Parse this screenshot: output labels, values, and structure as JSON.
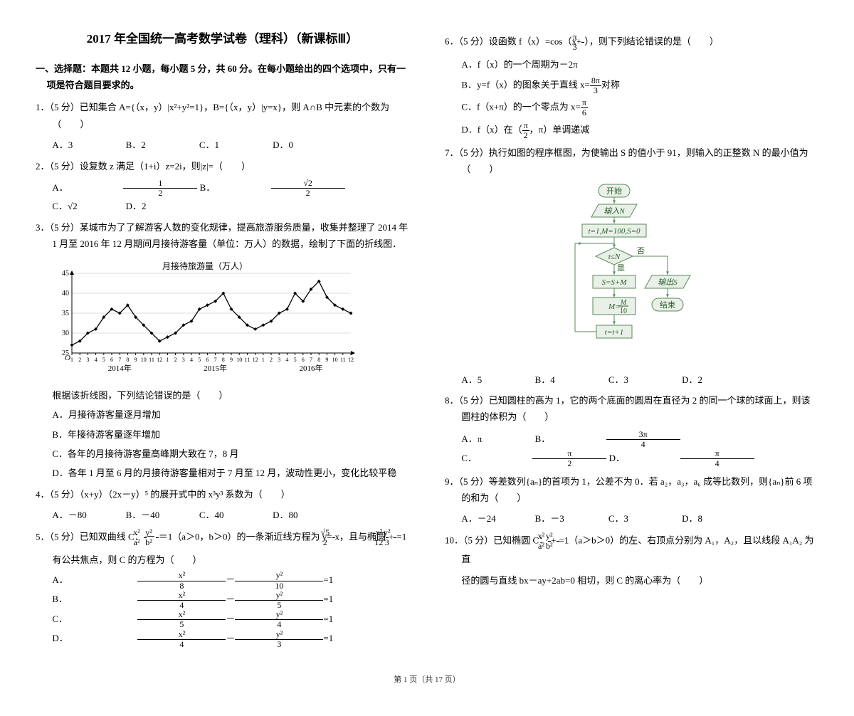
{
  "title": "2017 年全国统一高考数学试卷（理科）（新课标Ⅲ）",
  "section1": "一、选择题：本题共 12 小题，每小题 5 分，共 60 分。在每小题给出的四个选项中，只有一项是符合题目要求的。",
  "q1": {
    "stem": "1．（5 分）已知集合 A={（x，y）|x²+y²=1}，B={（x，y）|y=x}，则 A∩B 中元素的个数为（　　）",
    "a": "A．3",
    "b": "B．2",
    "c": "C．1",
    "d": "D．0"
  },
  "q2": {
    "stem": "2．（5 分）设复数 z 满足（1+i）z=2i，则|z|=（　　）",
    "a": "A．",
    "b": "B．",
    "c": "C．√2",
    "d": "D．2"
  },
  "q3": {
    "stem": "3．（5 分）某城市为了了解游客人数的变化规律，提高旅游服务质量，收集并整理了 2014 年 1 月至 2016 年 12 月期间月接待游客量（单位：万人）的数据，绘制了下面的折线图．",
    "chart_title": "月接待旅游量（万人）",
    "chart": {
      "y_ticks": [
        45,
        40,
        35,
        30,
        25
      ],
      "x_years": [
        "2014年",
        "2015年",
        "2016年"
      ],
      "months_label": [
        1,
        2,
        3,
        4,
        5,
        6,
        7,
        8,
        9,
        10,
        11,
        12,
        1,
        2,
        3,
        4,
        5,
        6,
        7,
        8,
        9,
        10,
        11,
        12,
        1,
        2,
        3,
        4,
        5,
        6,
        7,
        8,
        9,
        10,
        11,
        12
      ],
      "values": [
        27,
        28,
        30,
        31,
        34,
        36,
        35,
        37,
        34,
        32,
        30,
        28,
        29,
        30,
        32,
        33,
        36,
        37,
        38,
        40,
        36,
        34,
        32,
        31,
        32,
        33,
        35,
        36,
        40,
        38,
        41,
        43,
        39,
        37,
        36,
        35
      ],
      "bg": "#ffffff",
      "grid": "#bbbbbb",
      "line": "#000000",
      "tick_font": 10
    },
    "post": "根据该折线图，下列结论错误的是（　　）",
    "a": "A．月接待游客量逐月增加",
    "b": "B．年接待游客量逐年增加",
    "c": "C．各年的月接待游客量高峰期大致在 7，8 月",
    "d": "D．各年 1 月至 6 月的月接待游客量相对于 7 月至 12 月，波动性更小，变化比较平稳"
  },
  "q4": {
    "stem": "4．（5 分）（x+y）（2x－y）⁵ 的展开式中的 x³y³ 系数为（　　）",
    "a": "A．－80",
    "b": "B．－40",
    "c": "C．40",
    "d": "D．80"
  },
  "q5": {
    "stem_a": "5．（5 分）已知双曲线 C：",
    "stem_b": "＝1（a＞0，b＞0）的一条渐近线方程为 y=",
    "stem_c": "x，且与椭圆",
    "stem_d": "=1",
    "line2": "有公共焦点，则 C 的方程为（　　）",
    "a": "A．",
    "b": "B．",
    "c": "C．",
    "d": "D．",
    "eq": "=1"
  },
  "q6": {
    "stem_a": "6．（5 分）设函数 f（x）=cos（x+",
    "stem_b": "），则下列结论错误的是（　　）",
    "a": "A．f（x）的一个周期为－2π",
    "b_a": "B．y=f（x）的图象关于直线 x=",
    "b_b": "对称",
    "c_a": "C．f（x+π）的一个零点为 x=",
    "d_a": "D．f（x）在（",
    "d_b": "，π）单调递减"
  },
  "q7": {
    "stem": "7．（5 分）执行如图的程序框图，为使输出 S 的值小于 91，则输入的正整数 N 的最小值为（　　）",
    "flow": {
      "start": "开始",
      "input": "输入N",
      "init": "t=1,M=100,S=0",
      "cond": "t≤N",
      "yes": "是",
      "no": "否",
      "s1": "S=S+M",
      "s2_a": "M=-",
      "s2_frac_n": "M",
      "s2_frac_d": "10",
      "s3": "t=t+1",
      "out": "输出S",
      "end": "结束",
      "bg": "#e8f0e8",
      "border": "#5a8a5a",
      "text": "#2a5a2a"
    },
    "a": "A．5",
    "b": "B．4",
    "c": "C．3",
    "d": "D．2"
  },
  "q8": {
    "stem": "8．（5 分）已知圆柱的高为 1，它的两个底面的圆周在直径为 2 的同一个球的球面上，则该圆柱的体积为（　　）",
    "a": "A．π",
    "b": "B．",
    "c": "C．",
    "d": "D．"
  },
  "q9": {
    "stem": "9．（5 分）等差数列{aₙ}的首项为 1，公差不为 0．若 a₂，a₃，a₆ 成等比数列，则{aₙ}前 6 项的和为（　　）",
    "a": "A．－24",
    "b": "B．－3",
    "c": "C．3",
    "d": "D．8"
  },
  "q10": {
    "stem_a": "10．（5 分）已知椭圆 C：",
    "stem_b": "=1（a＞b＞0）的左、右顶点分别为 A₁，A₂，且以线段 A₁A₂ 为直",
    "line2": "径的圆与直线 bx－ay+2ab=0 相切，则 C 的离心率为（　　）"
  },
  "footer": "第 1 页（共 17 页）"
}
